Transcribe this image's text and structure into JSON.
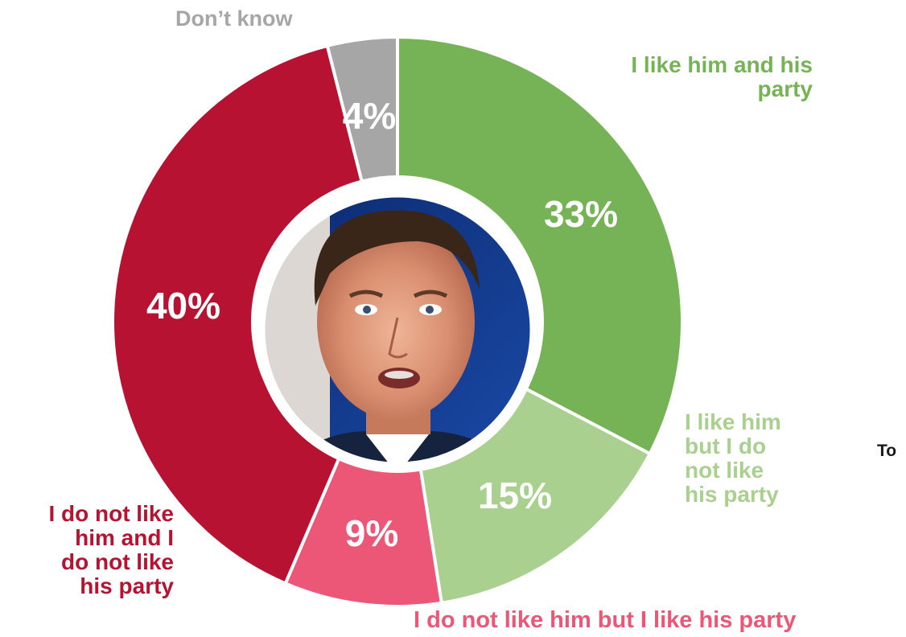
{
  "chart_data": {
    "type": "pie",
    "donut": true,
    "categories": [
      "I like him and his party",
      "I like him but I do not like his party",
      "I do not like him but I like his party",
      "I do not like him and I do not like his party",
      "Don’t know"
    ],
    "values": [
      33,
      15,
      9,
      40,
      4
    ],
    "value_labels": [
      "33%",
      "15%",
      "9%",
      "40%",
      "4%"
    ],
    "colors": [
      "#76b256",
      "#a9d08e",
      "#ec5677",
      "#b81233",
      "#a6a6a6"
    ],
    "center": "photo of a man",
    "start_angle": "12 o'clock",
    "direction": "clockwise"
  },
  "labels": {
    "like_both": "I like him and his\nparty",
    "like_him_not_party": "I like him\nbut I do\nnot like\nhis party",
    "like_party_not_him": "I do not like him but I like his party",
    "like_neither": "I do not like\nhim and I\ndo not like\nhis party",
    "dont_know": "Don’t know",
    "cut_off_text": "To"
  }
}
